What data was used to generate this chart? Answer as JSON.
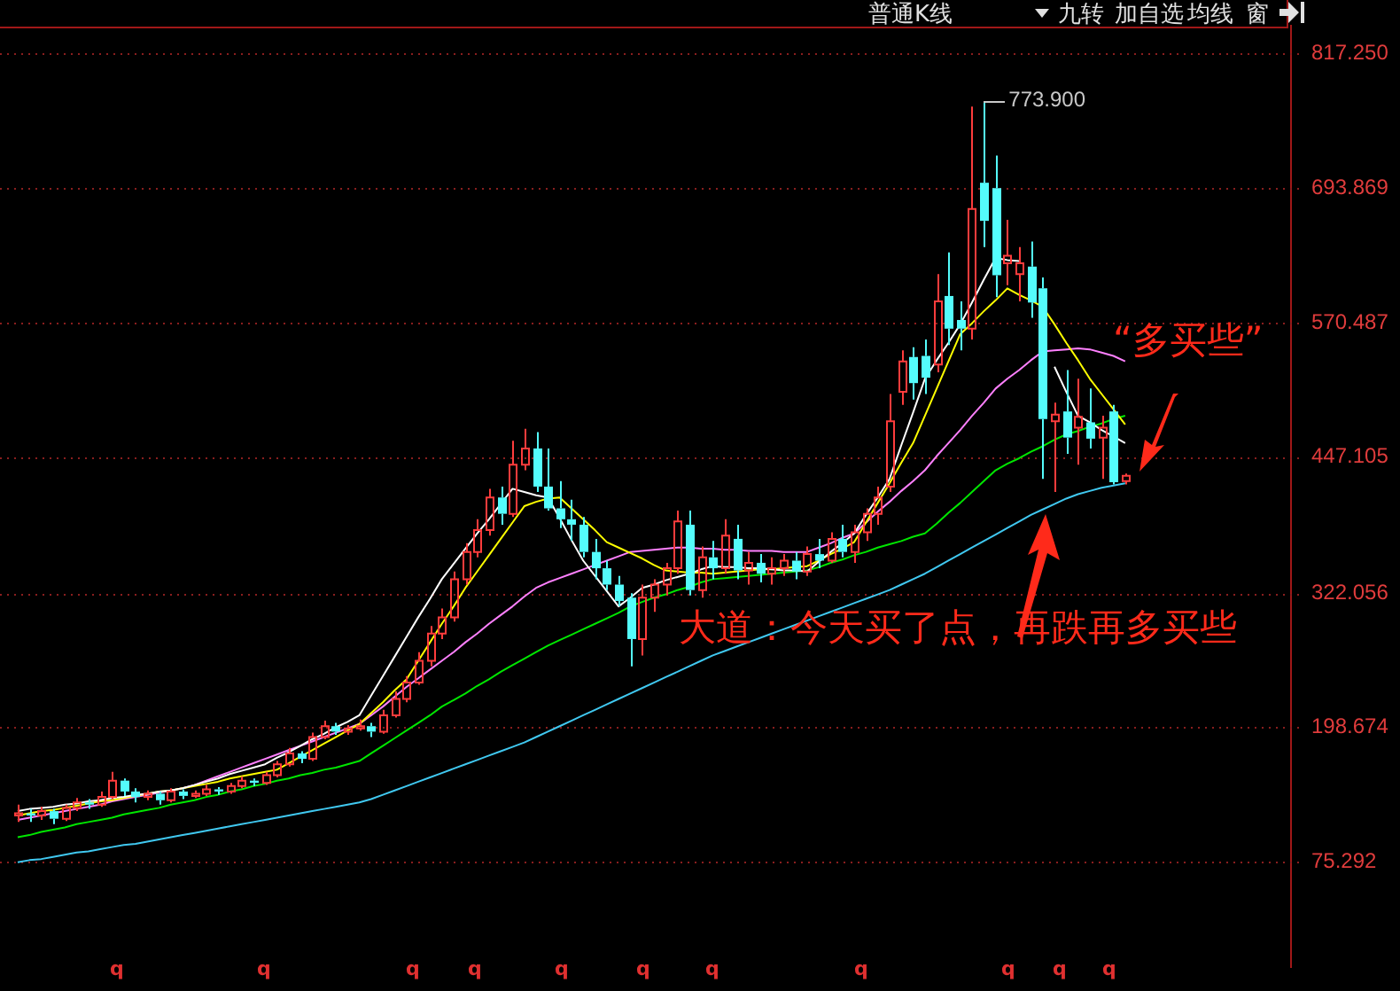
{
  "chart_data": {
    "type": "candlestick",
    "categories": [
      null,
      null,
      null,
      null,
      null,
      null,
      null,
      null,
      null,
      null,
      null,
      null,
      null,
      null,
      null,
      null,
      null,
      null,
      null,
      null,
      null,
      null,
      null,
      null,
      null,
      null,
      null,
      null,
      null,
      null,
      null,
      null,
      null,
      null,
      null,
      null,
      null,
      null,
      null,
      null,
      null,
      null,
      null,
      null,
      null,
      null,
      null,
      null,
      null,
      null,
      null,
      null,
      null,
      null,
      null,
      null,
      null,
      null,
      null,
      null,
      null,
      null,
      null,
      null,
      null,
      null,
      null,
      null,
      null,
      null,
      null,
      null,
      null,
      null,
      null,
      null,
      null,
      null,
      null,
      null,
      null,
      null,
      null,
      null,
      null,
      null,
      null,
      null,
      null,
      null,
      null,
      null,
      null,
      null,
      null
    ],
    "ohlc": [
      [
        118,
        128,
        112,
        120
      ],
      [
        120,
        124,
        112,
        118
      ],
      [
        118,
        126,
        114,
        122
      ],
      [
        122,
        124,
        110,
        115
      ],
      [
        115,
        128,
        113,
        125
      ],
      [
        125,
        134,
        122,
        130
      ],
      [
        130,
        133,
        124,
        128
      ],
      [
        128,
        140,
        126,
        135
      ],
      [
        135,
        158,
        133,
        150
      ],
      [
        150,
        152,
        136,
        140
      ],
      [
        140,
        143,
        130,
        135
      ],
      [
        135,
        141,
        132,
        138
      ],
      [
        138,
        140,
        128,
        132
      ],
      [
        132,
        143,
        130,
        140
      ],
      [
        140,
        142,
        133,
        136
      ],
      [
        136,
        141,
        134,
        138
      ],
      [
        138,
        146,
        136,
        142
      ],
      [
        142,
        144,
        137,
        140
      ],
      [
        140,
        148,
        138,
        145
      ],
      [
        145,
        154,
        143,
        150
      ],
      [
        150,
        152,
        145,
        148
      ],
      [
        148,
        158,
        146,
        155
      ],
      [
        155,
        168,
        153,
        165
      ],
      [
        165,
        180,
        163,
        175
      ],
      [
        175,
        177,
        166,
        170
      ],
      [
        170,
        194,
        168,
        190
      ],
      [
        190,
        205,
        188,
        200
      ],
      [
        200,
        203,
        192,
        195
      ],
      [
        195,
        201,
        192,
        198
      ],
      [
        198,
        206,
        196,
        200
      ],
      [
        200,
        203,
        190,
        195
      ],
      [
        195,
        215,
        193,
        210
      ],
      [
        210,
        232,
        208,
        225
      ],
      [
        225,
        246,
        222,
        240
      ],
      [
        240,
        268,
        238,
        260
      ],
      [
        260,
        292,
        255,
        285
      ],
      [
        285,
        308,
        280,
        300
      ],
      [
        300,
        342,
        296,
        335
      ],
      [
        335,
        368,
        330,
        360
      ],
      [
        360,
        390,
        355,
        380
      ],
      [
        380,
        418,
        375,
        410
      ],
      [
        410,
        420,
        385,
        395
      ],
      [
        395,
        462,
        392,
        440
      ],
      [
        440,
        473,
        435,
        455
      ],
      [
        455,
        470,
        415,
        420
      ],
      [
        420,
        455,
        398,
        400
      ],
      [
        400,
        425,
        382,
        390
      ],
      [
        390,
        408,
        370,
        385
      ],
      [
        385,
        392,
        355,
        360
      ],
      [
        360,
        372,
        335,
        345
      ],
      [
        345,
        352,
        325,
        330
      ],
      [
        330,
        338,
        310,
        315
      ],
      [
        318,
        322,
        255,
        280
      ],
      [
        280,
        330,
        265,
        318
      ],
      [
        318,
        335,
        305,
        330
      ],
      [
        330,
        350,
        320,
        345
      ],
      [
        345,
        398,
        340,
        388
      ],
      [
        385,
        398,
        320,
        325
      ],
      [
        325,
        365,
        318,
        355
      ],
      [
        355,
        370,
        335,
        345
      ],
      [
        345,
        390,
        340,
        375
      ],
      [
        372,
        385,
        335,
        343
      ],
      [
        343,
        360,
        330,
        350
      ],
      [
        350,
        358,
        332,
        340
      ],
      [
        340,
        355,
        330,
        345
      ],
      [
        345,
        358,
        338,
        352
      ],
      [
        352,
        360,
        335,
        342
      ],
      [
        342,
        365,
        338,
        358
      ],
      [
        358,
        372,
        345,
        352
      ],
      [
        352,
        378,
        350,
        372
      ],
      [
        372,
        385,
        355,
        360
      ],
      [
        360,
        385,
        350,
        378
      ],
      [
        378,
        400,
        370,
        395
      ],
      [
        395,
        420,
        385,
        410
      ],
      [
        420,
        505,
        415,
        480
      ],
      [
        507,
        545,
        495,
        535
      ],
      [
        539,
        548,
        500,
        515
      ],
      [
        540,
        555,
        505,
        520
      ],
      [
        532,
        615,
        525,
        590
      ],
      [
        595,
        635,
        550,
        565
      ],
      [
        573,
        590,
        545,
        565
      ],
      [
        565,
        769,
        555,
        675
      ],
      [
        699,
        773.9,
        640,
        664
      ],
      [
        694,
        724,
        594,
        614
      ],
      [
        625,
        665,
        605,
        632
      ],
      [
        615,
        640,
        590,
        625
      ],
      [
        622,
        645,
        575,
        589
      ],
      [
        602,
        612,
        427,
        482
      ],
      [
        480,
        497,
        415,
        486
      ],
      [
        489,
        527,
        450,
        465
      ],
      [
        474,
        519,
        440,
        484
      ],
      [
        479,
        510,
        455,
        464
      ],
      [
        465,
        485,
        427,
        474
      ],
      [
        489,
        495,
        422,
        424
      ],
      [
        425,
        432,
        422,
        430
      ]
    ],
    "series": [
      {
        "type": "line",
        "color": "#ffffff",
        "values": [
          122,
          124,
          125,
          126,
          128,
          129,
          131,
          132,
          134,
          135,
          137,
          138,
          140,
          141,
          143,
          146,
          149,
          152,
          156,
          159,
          162,
          165,
          171,
          176,
          182,
          188,
          193,
          199,
          204,
          210,
          228,
          246,
          264,
          282,
          300,
          317,
          335,
          349,
          363,
          377,
          390,
          404,
          418,
          415,
          412,
          410,
          391,
          371,
          352,
          338,
          324,
          310,
          318,
          327,
          330,
          334,
          337,
          340,
          344,
          347,
          346,
          346,
          345,
          345,
          344,
          343,
          343,
          342,
          351,
          360,
          368,
          377,
          394,
          410,
          427,
          458,
          488,
          519,
          536,
          552,
          569,
          589,
          610,
          630,
          628,
          627,
          null,
          null,
          530,
          507,
          485,
          479,
          472,
          466,
          460
        ]
      },
      {
        "type": "line",
        "color": "#ffff00",
        "values": [
          118,
          120,
          122,
          123,
          125,
          127,
          129,
          131,
          132,
          134,
          136,
          138,
          140,
          141,
          143,
          145,
          147,
          149,
          152,
          154,
          156,
          158,
          160,
          166,
          172,
          178,
          184,
          190,
          196,
          202,
          212,
          222,
          233,
          243,
          260,
          277,
          294,
          310,
          327,
          342,
          357,
          372,
          387,
          402,
          406,
          409,
          410,
          400,
          390,
          380,
          369,
          364,
          359,
          354,
          348,
          343,
          342,
          341,
          341,
          340,
          341,
          342,
          343,
          344,
          344,
          345,
          346,
          347,
          352,
          358,
          363,
          369,
          387,
          405,
          423,
          442,
          460,
          485,
          510,
          535,
          560,
          570,
          581,
          591,
          602,
          596,
          591,
          585,
          569,
          552,
          536,
          519,
          505,
          491,
          477
        ]
      },
      {
        "type": "line",
        "color": "#ff80ff",
        "values": [
          114,
          116,
          118,
          120,
          122,
          124,
          126,
          128,
          131,
          133,
          135,
          137,
          139,
          141,
          143,
          146,
          150,
          154,
          158,
          162,
          166,
          170,
          174,
          178,
          182,
          186,
          190,
          194,
          198,
          202,
          210,
          218,
          227,
          236,
          244,
          252,
          260,
          268,
          277,
          285,
          294,
          302,
          310,
          319,
          327,
          332,
          336,
          340,
          344,
          348,
          352,
          356,
          360,
          361,
          362,
          363,
          364,
          364,
          363,
          363,
          362,
          362,
          361,
          361,
          361,
          360,
          360,
          360,
          364,
          368,
          373,
          377,
          387,
          397,
          406,
          416,
          425,
          435,
          448,
          460,
          472,
          485,
          497,
          510,
          519,
          527,
          536,
          544,
          545,
          546,
          547,
          546,
          543,
          540,
          535
        ]
      },
      {
        "type": "line",
        "color": "#00e600",
        "values": [
          98,
          100,
          103,
          105,
          107,
          110,
          112,
          114,
          116,
          119,
          121,
          123,
          125,
          128,
          130,
          132,
          135,
          137,
          140,
          142,
          145,
          147,
          150,
          152,
          155,
          157,
          160,
          162,
          165,
          168,
          175,
          182,
          189,
          196,
          203,
          210,
          218,
          224,
          230,
          237,
          243,
          250,
          256,
          262,
          268,
          274,
          279,
          284,
          289,
          294,
          299,
          304,
          310,
          314,
          318,
          321,
          325,
          328,
          332,
          335,
          336,
          337,
          338,
          339,
          340,
          341,
          342,
          343,
          346,
          350,
          353,
          357,
          360,
          364,
          367,
          370,
          374,
          377,
          386,
          396,
          405,
          415,
          425,
          435,
          441,
          446,
          452,
          457,
          463,
          468,
          471,
          475,
          478,
          482,
          485
        ]
      },
      {
        "type": "line",
        "color": "#40c8f0",
        "values": [
          75,
          77,
          78,
          80,
          82,
          84,
          85,
          87,
          89,
          91,
          92,
          94,
          96,
          98,
          100,
          102,
          104,
          106,
          108,
          110,
          112,
          114,
          116,
          118,
          120,
          122,
          124,
          126,
          128,
          130,
          133,
          137,
          141,
          145,
          149,
          153,
          157,
          161,
          165,
          169,
          173,
          177,
          181,
          185,
          190,
          195,
          200,
          205,
          210,
          215,
          220,
          225,
          230,
          235,
          240,
          245,
          250,
          255,
          260,
          265,
          269,
          273,
          277,
          281,
          285,
          289,
          293,
          297,
          301,
          305,
          309,
          313,
          317,
          321,
          325,
          330,
          335,
          340,
          346,
          352,
          358,
          364,
          370,
          376,
          382,
          388,
          394,
          399,
          404,
          409,
          413,
          416,
          419,
          421,
          423
        ]
      }
    ],
    "ylim": [
      -22,
      844
    ],
    "yticks": [
      {
        "value": 75.292,
        "label": "75.292"
      },
      {
        "value": 198.674,
        "label": "198.674"
      },
      {
        "value": 322.056,
        "label": "322.056"
      },
      {
        "value": 447.105,
        "label": "447.105"
      },
      {
        "value": 570.487,
        "label": "570.487"
      },
      {
        "value": 693.869,
        "label": "693.869"
      },
      {
        "value": 817.25,
        "label": "817.250"
      }
    ],
    "grid": "y",
    "legend": false,
    "tick_labels": "y",
    "marker": "none",
    "line_style": "solid",
    "annotations": [
      "普通K线",
      "九转",
      "加自选",
      "均线",
      "窗",
      "773.900",
      "大道：今天买了点，再跌再多买些",
      "“多买些”",
      "q",
      "q",
      "q",
      "q",
      "q",
      "q",
      "q",
      "q",
      "q",
      "q",
      "q"
    ]
  }
}
